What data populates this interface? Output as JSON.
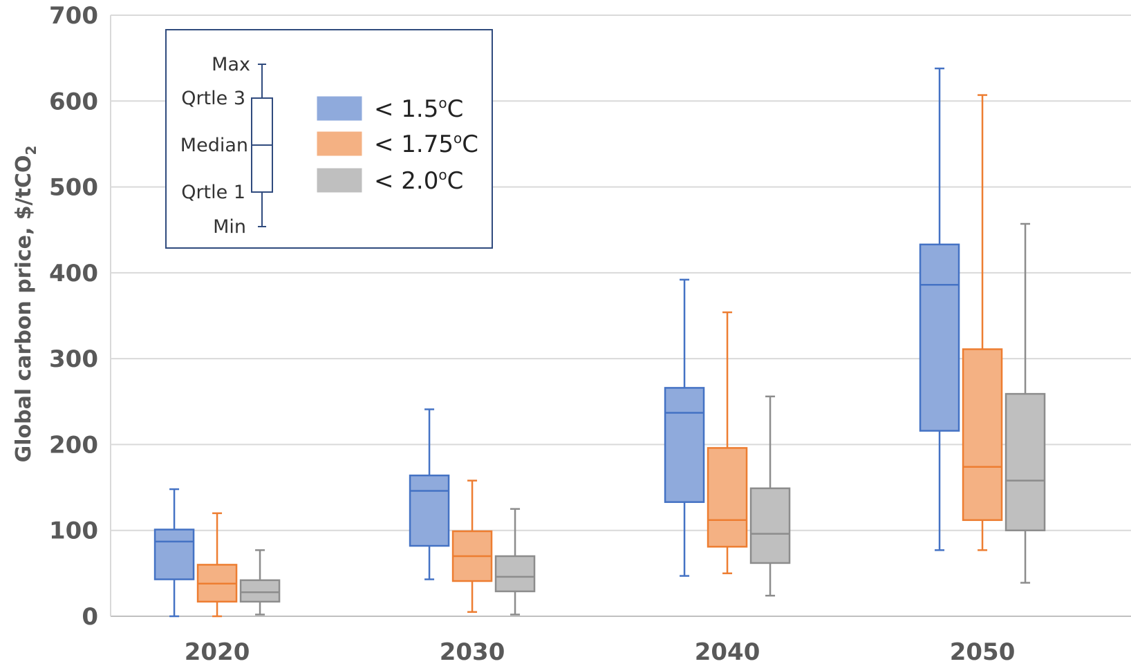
{
  "chart_data": {
    "type": "box",
    "categories": [
      "2020",
      "2030",
      "2040",
      "2050"
    ],
    "ylabel": "Global carbon price, $/tCO",
    "ylabel_subscript": "2",
    "ylim": [
      0,
      700
    ],
    "yticks": [
      0,
      100,
      200,
      300,
      400,
      500,
      600,
      700
    ],
    "grid": true,
    "legend_position": "top-left",
    "key": {
      "labels": [
        "Max",
        "Qrtle 3",
        "Median",
        "Qrtle 1",
        "Min"
      ]
    },
    "series": [
      {
        "name": "< 1.5",
        "name_sup": "o",
        "name_unit": "C",
        "color": "#4472C4",
        "fill": "#8FAADC",
        "boxes": [
          {
            "min": 0,
            "q1": 43,
            "median": 87,
            "q3": 101,
            "max": 148
          },
          {
            "min": 43,
            "q1": 82,
            "median": 146,
            "q3": 164,
            "max": 241
          },
          {
            "min": 47,
            "q1": 133,
            "median": 237,
            "q3": 266,
            "max": 392
          },
          {
            "min": 77,
            "q1": 216,
            "median": 386,
            "q3": 433,
            "max": 638
          }
        ]
      },
      {
        "name": "< 1.75",
        "name_sup": "o",
        "name_unit": "C",
        "color": "#ED7D31",
        "fill": "#F4B183",
        "boxes": [
          {
            "min": 0,
            "q1": 17,
            "median": 38,
            "q3": 60,
            "max": 120
          },
          {
            "min": 5,
            "q1": 41,
            "median": 70,
            "q3": 99,
            "max": 158
          },
          {
            "min": 50,
            "q1": 81,
            "median": 112,
            "q3": 196,
            "max": 354
          },
          {
            "min": 77,
            "q1": 112,
            "median": 174,
            "q3": 311,
            "max": 607
          }
        ]
      },
      {
        "name": "< 2.0",
        "name_sup": "o",
        "name_unit": "C",
        "color": "#8C8C8C",
        "fill": "#BFBFBF",
        "boxes": [
          {
            "min": 2,
            "q1": 17,
            "median": 28,
            "q3": 42,
            "max": 77
          },
          {
            "min": 2,
            "q1": 29,
            "median": 46,
            "q3": 70,
            "max": 125
          },
          {
            "min": 24,
            "q1": 62,
            "median": 96,
            "q3": 149,
            "max": 256
          },
          {
            "min": 39,
            "q1": 100,
            "median": 158,
            "q3": 259,
            "max": 457
          }
        ]
      }
    ]
  }
}
